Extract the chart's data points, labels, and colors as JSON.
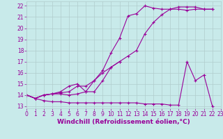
{
  "background_color": "#c8eaea",
  "grid_color": "#b0cccc",
  "line_color": "#990099",
  "markersize": 2.5,
  "linewidth": 0.8,
  "xlabel": "Windchill (Refroidissement éolien,°C)",
  "xlabel_fontsize": 6.5,
  "tick_fontsize": 5.5,
  "xlim": [
    0,
    23
  ],
  "ylim": [
    12.8,
    22.4
  ],
  "yticks": [
    13,
    14,
    15,
    16,
    17,
    18,
    19,
    20,
    21,
    22
  ],
  "xticks": [
    0,
    1,
    2,
    3,
    4,
    5,
    6,
    7,
    8,
    9,
    10,
    11,
    12,
    13,
    14,
    15,
    16,
    17,
    18,
    19,
    20,
    21,
    22,
    23
  ],
  "series": [
    {
      "x": [
        0,
        1,
        2,
        3,
        4,
        5,
        6,
        7,
        8,
        9,
        10,
        11,
        12,
        13,
        14,
        15,
        16,
        17,
        18,
        19,
        20,
        21,
        22
      ],
      "y": [
        14.0,
        13.7,
        14.0,
        14.1,
        14.1,
        14.0,
        14.1,
        14.3,
        15.3,
        16.2,
        17.8,
        19.1,
        21.1,
        21.3,
        22.0,
        21.8,
        21.7,
        21.7,
        21.7,
        21.6,
        21.7,
        21.7,
        21.7
      ]
    },
    {
      "x": [
        0,
        1,
        2,
        3,
        4,
        5,
        6,
        7,
        8,
        9,
        10,
        11,
        12,
        13,
        14,
        15,
        16,
        17,
        18,
        19,
        20,
        21,
        22
      ],
      "y": [
        14.0,
        13.7,
        14.0,
        14.1,
        14.2,
        14.3,
        14.8,
        14.8,
        15.3,
        16.0,
        16.5,
        17.0,
        17.5,
        18.0,
        19.5,
        20.5,
        21.2,
        21.7,
        21.9,
        21.9,
        21.9,
        21.7,
        21.7
      ]
    },
    {
      "x": [
        0,
        1,
        2,
        3,
        4,
        5,
        6,
        7,
        8,
        9,
        10,
        11
      ],
      "y": [
        14.0,
        13.7,
        14.0,
        14.1,
        14.3,
        14.8,
        15.0,
        14.3,
        14.3,
        15.3,
        16.5,
        17.0
      ]
    },
    {
      "x": [
        0,
        1,
        2,
        3,
        4,
        5,
        6,
        7,
        8,
        9,
        10,
        11,
        12,
        13,
        14,
        15,
        16,
        17,
        18,
        19,
        20,
        21,
        22
      ],
      "y": [
        14.0,
        13.7,
        13.5,
        13.4,
        13.4,
        13.3,
        13.3,
        13.3,
        13.3,
        13.3,
        13.3,
        13.3,
        13.3,
        13.3,
        13.2,
        13.2,
        13.2,
        13.1,
        13.1,
        17.0,
        15.3,
        15.8,
        13.0
      ]
    }
  ]
}
